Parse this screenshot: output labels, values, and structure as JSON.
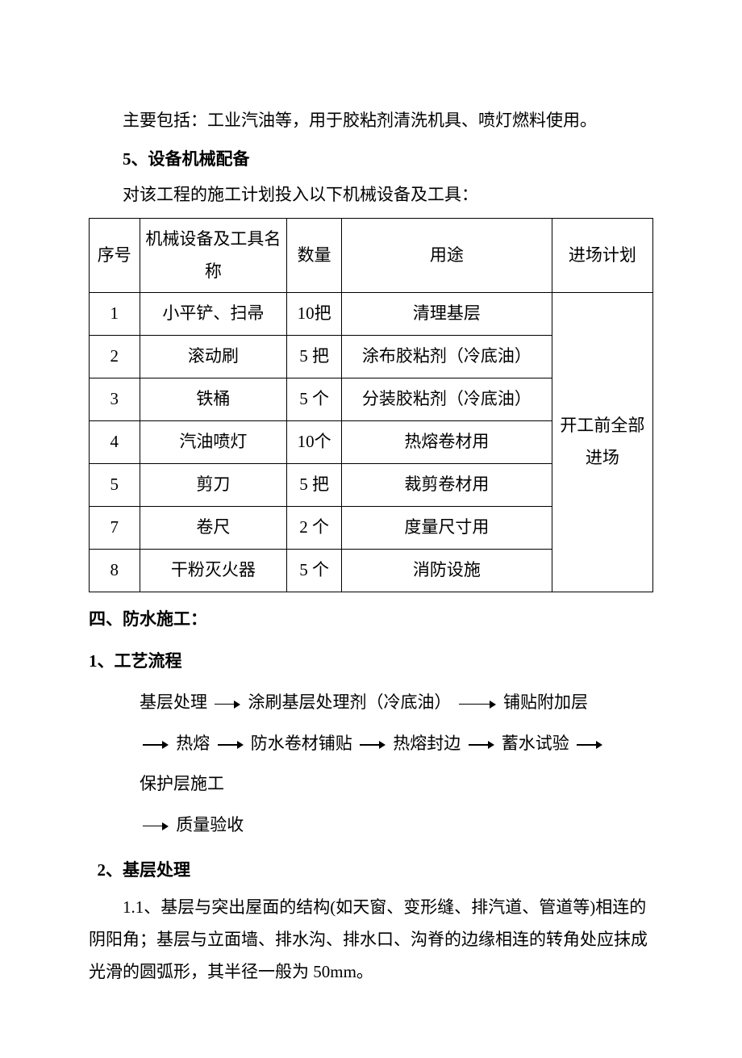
{
  "paragraphs": {
    "intro": "主要包括：工业汽油等，用于胶粘剂清洗机具、喷灯燃料使用。",
    "h5": "5、设备机械配备",
    "intro2": "对该工程的施工计划投入以下机械设备及工具：",
    "h_section4": "四、防水施工：",
    "h_1": "1、工艺流程",
    "h_2": "2、基层处理",
    "p_2_1": "1.1、基层与突出屋面的结构(如天窗、变形缝、排汽道、管道等)相连的阴阳角；基层与立面墙、排水沟、排水口、沟脊的边缘相连的转角处应抹成光滑的圆弧形，其半径一般为 50mm。"
  },
  "table": {
    "columns": [
      "序号",
      "机械设备及工具名称",
      "数量",
      "用途",
      "进场计划"
    ],
    "rows": [
      {
        "seq": "1",
        "name": "小平铲、扫帚",
        "qty": "10把",
        "use": "清理基层"
      },
      {
        "seq": "2",
        "name": "滚动刷",
        "qty": "5 把",
        "use": "涂布胶粘剂（冷底油）"
      },
      {
        "seq": "3",
        "name": "铁桶",
        "qty": "5 个",
        "use": "分装胶粘剂（冷底油）"
      },
      {
        "seq": "4",
        "name": "汽油喷灯",
        "qty": "10个",
        "use": "热熔卷材用"
      },
      {
        "seq": "5",
        "name": "剪刀",
        "qty": "5 把",
        "use": "裁剪卷材用"
      },
      {
        "seq": "7",
        "name": "卷尺",
        "qty": "2 个",
        "use": "度量尺寸用"
      },
      {
        "seq": "8",
        "name": "干粉灭火器",
        "qty": "5 个",
        "use": "消防设施"
      }
    ],
    "schedule_merged": "开工前全部进场"
  },
  "flow_steps": [
    "基层处理",
    "涂刷基层处理剂（冷底油）",
    "铺贴附加层",
    "热熔",
    "防水卷材铺贴",
    "热熔封边",
    "蓄水试验",
    "保护层施工",
    "质量验收"
  ]
}
